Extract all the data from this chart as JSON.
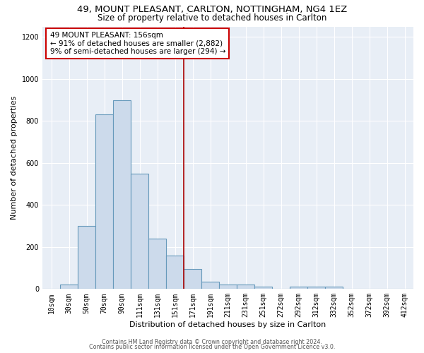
{
  "title1": "49, MOUNT PLEASANT, CARLTON, NOTTINGHAM, NG4 1EZ",
  "title2": "Size of property relative to detached houses in Carlton",
  "xlabel": "Distribution of detached houses by size in Carlton",
  "ylabel": "Number of detached properties",
  "bar_labels": [
    "10sqm",
    "30sqm",
    "50sqm",
    "70sqm",
    "90sqm",
    "111sqm",
    "131sqm",
    "151sqm",
    "171sqm",
    "191sqm",
    "211sqm",
    "231sqm",
    "251sqm",
    "272sqm",
    "292sqm",
    "312sqm",
    "332sqm",
    "352sqm",
    "372sqm",
    "392sqm",
    "412sqm"
  ],
  "bar_values": [
    0,
    20,
    300,
    830,
    900,
    550,
    240,
    160,
    95,
    35,
    20,
    20,
    10,
    0,
    10,
    10,
    10,
    0,
    0,
    0,
    0
  ],
  "bar_color": "#ccdaeb",
  "bar_edgecolor": "#6699bb",
  "bar_linewidth": 0.8,
  "vline_x": 7.5,
  "vline_color": "#aa0000",
  "vline_linewidth": 1.2,
  "annotation_text": "49 MOUNT PLEASANT: 156sqm\n← 91% of detached houses are smaller (2,882)\n9% of semi-detached houses are larger (294) →",
  "ylim": [
    0,
    1250
  ],
  "yticks": [
    0,
    200,
    400,
    600,
    800,
    1000,
    1200
  ],
  "background_color": "#e8eef6",
  "grid_color": "#ffffff",
  "footer1": "Contains HM Land Registry data © Crown copyright and database right 2024.",
  "footer2": "Contains public sector information licensed under the Open Government Licence v3.0.",
  "title1_fontsize": 9.5,
  "title2_fontsize": 8.5,
  "xlabel_fontsize": 8,
  "ylabel_fontsize": 8,
  "tick_fontsize": 7,
  "annotation_fontsize": 7.5,
  "footer_fontsize": 5.8
}
